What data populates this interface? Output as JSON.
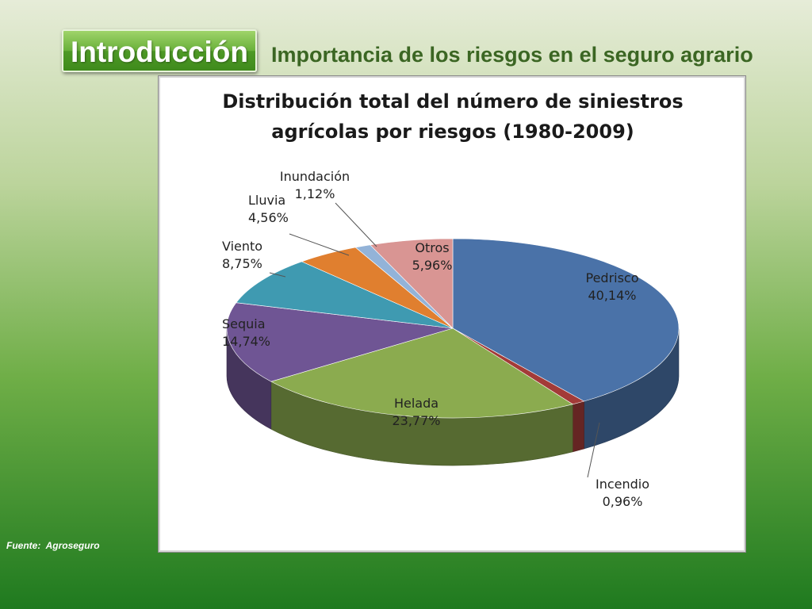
{
  "header": {
    "badge_label": "Introducción",
    "subtitle": "Importancia de los riesgos en el seguro agrario"
  },
  "chart_data": {
    "type": "pie",
    "title_line1": "Distribución total del número de siniestros",
    "title_line2": "agrícolas por riesgos (1980-2009)",
    "slices": [
      {
        "name": "Pedrisco",
        "label": "40,14%",
        "value": 40.14,
        "color": "#4a72a8"
      },
      {
        "name": "Incendio",
        "label": "0,96%",
        "value": 0.96,
        "color": "#a33b38"
      },
      {
        "name": "Helada",
        "label": "23,77%",
        "value": 23.77,
        "color": "#8bab4f"
      },
      {
        "name": "Sequia",
        "label": "14,74%",
        "value": 14.74,
        "color": "#6f5594"
      },
      {
        "name": "Viento",
        "label": "8,75%",
        "value": 8.75,
        "color": "#3f9ab1"
      },
      {
        "name": "Lluvia",
        "label": "4,56%",
        "value": 4.56,
        "color": "#e07f2f"
      },
      {
        "name": "Inundación",
        "label": "1,12%",
        "value": 1.12,
        "color": "#93b3d8"
      },
      {
        "name": "Otros",
        "label": "5,96%",
        "value": 5.96,
        "color": "#d99593"
      }
    ],
    "style": "3d-pie",
    "legend": "none"
  },
  "footer": {
    "source_label": "Fuente:",
    "source_value": "Agroseguro"
  }
}
